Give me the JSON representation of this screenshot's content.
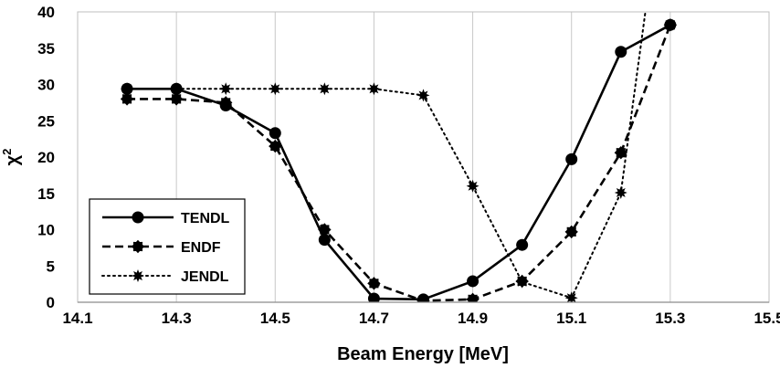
{
  "chart_data": {
    "type": "line",
    "title": "",
    "xlabel": "Beam Energy [MeV]",
    "ylabel_main": "χ",
    "ylabel_superscript": "2",
    "xlim": [
      14.1,
      15.5
    ],
    "ylim": [
      0,
      40
    ],
    "x_ticks": [
      "14.1",
      "14.3",
      "14.5",
      "14.7",
      "14.9",
      "15.1",
      "15.3",
      "15.5"
    ],
    "y_ticks": [
      "0",
      "5",
      "10",
      "15",
      "20",
      "25",
      "30",
      "35",
      "40"
    ],
    "grid": "vertical",
    "legend_position": "bottom-left",
    "series": [
      {
        "name": "TENDL",
        "line_style": "solid",
        "marker": "circle",
        "points": [
          [
            14.2,
            29.4
          ],
          [
            14.3,
            29.4
          ],
          [
            14.4,
            27.1
          ],
          [
            14.5,
            23.3
          ],
          [
            14.6,
            8.6
          ],
          [
            14.7,
            0.5
          ],
          [
            14.8,
            0.4
          ],
          [
            14.9,
            2.9
          ],
          [
            15.0,
            7.9
          ],
          [
            15.1,
            19.7
          ],
          [
            15.2,
            34.5
          ],
          [
            15.3,
            38.2
          ]
        ]
      },
      {
        "name": "ENDF",
        "line_style": "dashed",
        "marker": "gear",
        "points": [
          [
            14.2,
            28.0
          ],
          [
            14.3,
            28.0
          ],
          [
            14.4,
            27.5
          ],
          [
            14.5,
            21.5
          ],
          [
            14.6,
            10.0
          ],
          [
            14.7,
            2.6
          ],
          [
            14.8,
            0.2
          ],
          [
            14.9,
            0.4
          ],
          [
            15.0,
            2.9
          ],
          [
            15.1,
            9.7
          ],
          [
            15.2,
            20.6
          ],
          [
            15.3,
            38.2
          ]
        ]
      },
      {
        "name": "JENDL",
        "line_style": "dotted",
        "marker": "star",
        "points": [
          [
            14.2,
            29.4
          ],
          [
            14.3,
            29.4
          ],
          [
            14.4,
            29.4
          ],
          [
            14.5,
            29.4
          ],
          [
            14.6,
            29.4
          ],
          [
            14.7,
            29.4
          ],
          [
            14.8,
            28.5
          ],
          [
            14.9,
            16.0
          ],
          [
            15.0,
            2.8
          ],
          [
            15.1,
            0.6
          ],
          [
            15.2,
            15.1
          ],
          [
            15.25,
            40.2
          ]
        ]
      }
    ]
  }
}
